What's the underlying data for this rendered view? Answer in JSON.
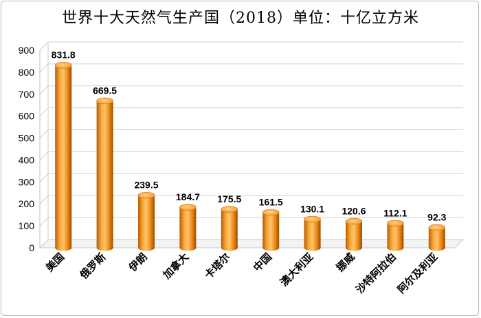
{
  "chart_data": {
    "type": "bar",
    "title": "世界十大天然气生产国（2018）单位：十亿立方米",
    "xlabel": "",
    "ylabel": "",
    "categories": [
      "美国",
      "俄罗斯",
      "伊朗",
      "加拿大",
      "卡塔尔",
      "中国",
      "澳大利亚",
      "挪威",
      "沙特阿拉伯",
      "阿尔及利亚"
    ],
    "values": [
      831.8,
      669.5,
      239.5,
      184.7,
      175.5,
      161.5,
      130.1,
      120.6,
      112.1,
      92.3
    ],
    "value_labels": [
      "831.8",
      "669.5",
      "239.5",
      "184.7",
      "175.5",
      "161.5",
      "130.1",
      "120.6",
      "112.1",
      "92.3"
    ],
    "ylim": [
      0,
      900
    ],
    "yticks": [
      0,
      100,
      200,
      300,
      400,
      500,
      600,
      700,
      800,
      900
    ],
    "grid": true,
    "legend": "none",
    "style": "3d-cylinder",
    "bar_color": "#f0901c"
  }
}
